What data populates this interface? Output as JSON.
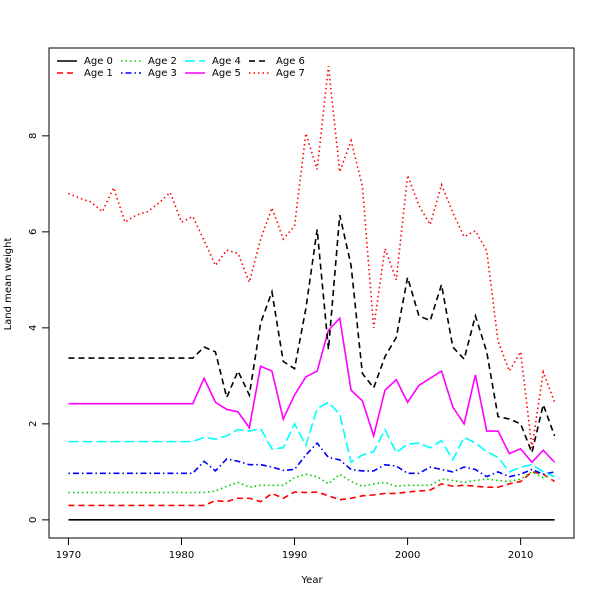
{
  "chart_data": {
    "type": "line",
    "xlabel": "Year",
    "ylabel": "Land mean weight",
    "x": [
      1970,
      1971,
      1972,
      1973,
      1974,
      1975,
      1976,
      1977,
      1978,
      1979,
      1980,
      1981,
      1982,
      1983,
      1984,
      1985,
      1986,
      1987,
      1988,
      1989,
      1990,
      1991,
      1992,
      1993,
      1994,
      1995,
      1996,
      1997,
      1998,
      1999,
      2000,
      2001,
      2002,
      2003,
      2004,
      2005,
      2006,
      2007,
      2008,
      2009,
      2010,
      2011,
      2012,
      2013
    ],
    "xlim": [
      1968.28,
      2014.72
    ],
    "xticks": [
      1970,
      1980,
      1990,
      2000,
      2010
    ],
    "ylim": [
      -0.378,
      9.83
    ],
    "yticks": [
      0,
      2,
      4,
      6,
      8
    ],
    "legend": "top-left",
    "series": [
      {
        "name": "Age 0",
        "color": "#000000",
        "linestyle": "solid",
        "values": [
          0,
          0,
          0,
          0,
          0,
          0,
          0,
          0,
          0,
          0,
          0,
          0,
          0,
          0,
          0,
          0,
          0,
          0,
          0,
          0,
          0,
          0,
          0,
          0,
          0,
          0,
          0,
          0,
          0,
          0,
          0,
          0,
          0,
          0,
          0,
          0,
          0,
          0,
          0,
          0,
          0,
          0,
          0,
          0
        ]
      },
      {
        "name": "Age 1",
        "color": "#ff0000",
        "linestyle": "dashed",
        "values": [
          0.3,
          0.3,
          0.3,
          0.3,
          0.3,
          0.3,
          0.3,
          0.3,
          0.3,
          0.3,
          0.3,
          0.3,
          0.3,
          0.4,
          0.38,
          0.45,
          0.45,
          0.38,
          0.55,
          0.45,
          0.58,
          0.57,
          0.58,
          0.5,
          0.42,
          0.45,
          0.5,
          0.52,
          0.55,
          0.55,
          0.58,
          0.6,
          0.62,
          0.75,
          0.7,
          0.72,
          0.7,
          0.68,
          0.68,
          0.75,
          0.8,
          1.0,
          0.95,
          0.8
        ]
      },
      {
        "name": "Age 2",
        "color": "#00cd00",
        "linestyle": "dotted",
        "values": [
          0.57,
          0.57,
          0.57,
          0.57,
          0.57,
          0.57,
          0.57,
          0.57,
          0.57,
          0.57,
          0.57,
          0.57,
          0.57,
          0.6,
          0.7,
          0.78,
          0.68,
          0.72,
          0.72,
          0.72,
          0.88,
          0.95,
          0.9,
          0.75,
          0.95,
          0.8,
          0.7,
          0.75,
          0.78,
          0.7,
          0.72,
          0.72,
          0.72,
          0.85,
          0.82,
          0.78,
          0.82,
          0.85,
          0.82,
          0.8,
          0.85,
          1.0,
          0.88,
          0.95
        ]
      },
      {
        "name": "Age 3",
        "color": "#0000ff",
        "linestyle": "dotdash",
        "values": [
          0.97,
          0.97,
          0.97,
          0.97,
          0.97,
          0.97,
          0.97,
          0.97,
          0.97,
          0.97,
          0.97,
          0.97,
          1.22,
          1.02,
          1.27,
          1.22,
          1.15,
          1.15,
          1.1,
          1.03,
          1.05,
          1.35,
          1.6,
          1.3,
          1.25,
          1.05,
          1.02,
          1.02,
          1.15,
          1.12,
          0.97,
          0.97,
          1.1,
          1.05,
          1.0,
          1.1,
          1.05,
          0.9,
          1.0,
          0.9,
          0.95,
          1.05,
          0.95,
          1.0
        ]
      },
      {
        "name": "Age 4",
        "color": "#00ffff",
        "linestyle": "longdash",
        "values": [
          1.63,
          1.63,
          1.63,
          1.63,
          1.63,
          1.63,
          1.63,
          1.63,
          1.63,
          1.63,
          1.63,
          1.63,
          1.72,
          1.68,
          1.75,
          1.88,
          1.85,
          1.9,
          1.48,
          1.5,
          2.0,
          1.55,
          2.32,
          2.45,
          2.2,
          1.2,
          1.35,
          1.42,
          1.88,
          1.4,
          1.58,
          1.6,
          1.5,
          1.65,
          1.25,
          1.72,
          1.6,
          1.42,
          1.3,
          1.0,
          1.1,
          1.15,
          1.0,
          0.9
        ]
      },
      {
        "name": "Age 5",
        "color": "#ff00ff",
        "linestyle": "solid",
        "values": [
          2.42,
          2.42,
          2.42,
          2.42,
          2.42,
          2.42,
          2.42,
          2.42,
          2.42,
          2.42,
          2.42,
          2.42,
          2.95,
          2.45,
          2.3,
          2.25,
          1.92,
          3.2,
          3.1,
          2.1,
          2.6,
          2.98,
          3.1,
          3.95,
          4.2,
          2.7,
          2.48,
          1.75,
          2.7,
          2.92,
          2.45,
          2.8,
          2.95,
          3.1,
          2.35,
          2.0,
          3.02,
          1.85,
          1.85,
          1.38,
          1.48,
          1.2,
          1.45,
          1.2
        ]
      },
      {
        "name": "Age 6",
        "color": "#000000",
        "linestyle": "dashed",
        "values": [
          3.37,
          3.37,
          3.37,
          3.37,
          3.37,
          3.37,
          3.37,
          3.37,
          3.37,
          3.37,
          3.37,
          3.37,
          3.6,
          3.5,
          2.55,
          3.1,
          2.6,
          4.1,
          4.75,
          3.3,
          3.15,
          4.4,
          6.05,
          3.55,
          6.35,
          5.3,
          3.05,
          2.75,
          3.4,
          3.8,
          5.05,
          4.25,
          4.15,
          4.9,
          3.6,
          3.35,
          4.25,
          3.5,
          2.15,
          2.1,
          2.0,
          1.4,
          2.4,
          1.75
        ]
      },
      {
        "name": "Age 7",
        "color": "#ff0000",
        "linestyle": "dotted",
        "values": [
          6.8,
          6.7,
          6.62,
          6.42,
          6.92,
          6.2,
          6.35,
          6.42,
          6.6,
          6.82,
          6.2,
          6.32,
          5.82,
          5.3,
          5.62,
          5.55,
          4.95,
          5.85,
          6.5,
          5.85,
          6.12,
          8.05,
          7.3,
          9.45,
          7.25,
          7.9,
          6.95,
          4.0,
          5.65,
          5.0,
          7.18,
          6.55,
          6.15,
          6.98,
          6.4,
          5.9,
          6.02,
          5.6,
          3.72,
          3.1,
          3.5,
          1.5,
          3.08,
          2.45
        ]
      }
    ]
  }
}
